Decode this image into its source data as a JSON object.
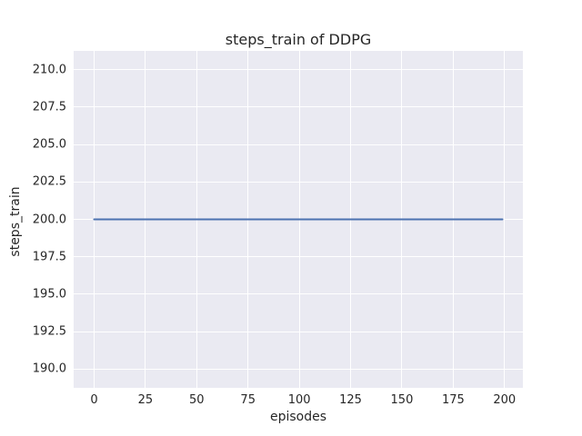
{
  "chart_data": {
    "type": "line",
    "title": "steps_train of DDPG",
    "xlabel": "episodes",
    "ylabel": "steps_train",
    "xlim": [
      -9.95,
      208.95
    ],
    "ylim": [
      188.75,
      211.25
    ],
    "xticks": [
      0,
      25,
      50,
      75,
      100,
      125,
      150,
      175,
      200
    ],
    "xticklabels": [
      "0",
      "25",
      "50",
      "75",
      "100",
      "125",
      "150",
      "175",
      "200"
    ],
    "yticks": [
      190.0,
      192.5,
      195.0,
      197.5,
      200.0,
      202.5,
      205.0,
      207.5,
      210.0
    ],
    "yticklabels": [
      "190.0",
      "192.5",
      "195.0",
      "197.5",
      "200.0",
      "202.5",
      "205.0",
      "207.5",
      "210.0"
    ],
    "grid": true,
    "legend": null,
    "series": [
      {
        "name": "steps_train",
        "color": "#4C72B0",
        "x": [
          0,
          199
        ],
        "y": [
          200,
          200
        ]
      }
    ]
  },
  "style": {
    "figure_bg": "#FFFFFF",
    "plot_bg": "#EAEAF2",
    "grid_color": "#FFFFFF",
    "text_color": "#262626",
    "line_width": 2
  }
}
